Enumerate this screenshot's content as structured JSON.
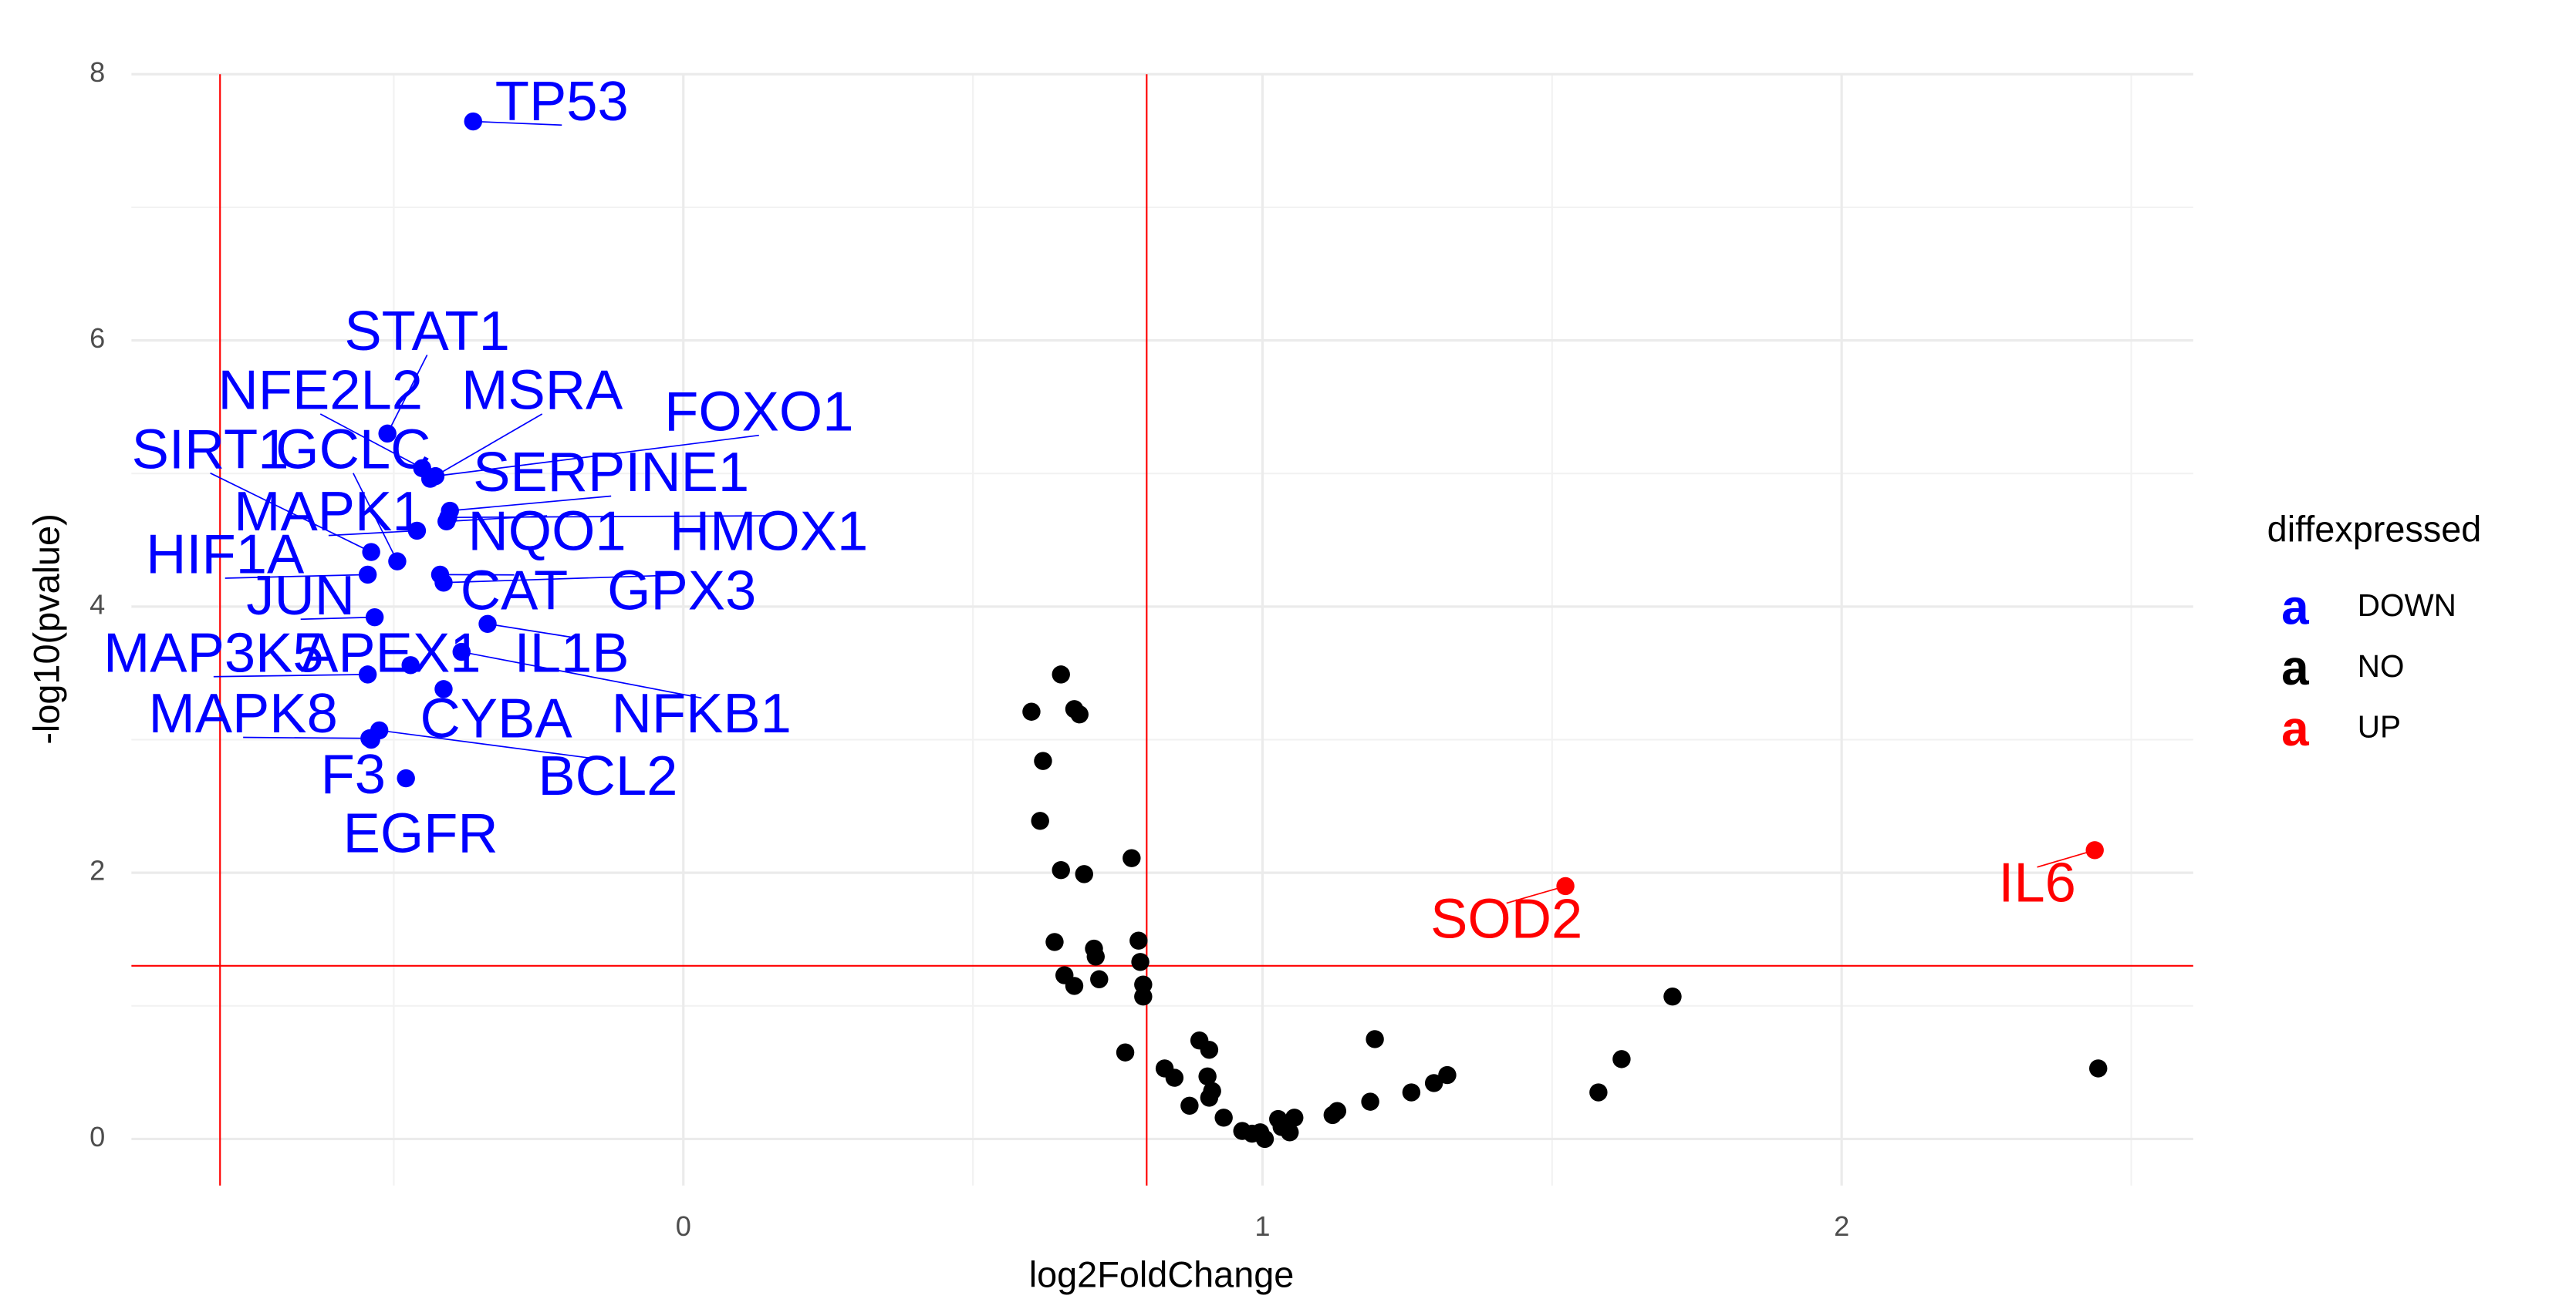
{
  "chart_data": {
    "type": "scatter",
    "x_label": "log2FoldChange",
    "y_label": "-log10(pvalue)",
    "xlim": [
      -0.953,
      2.607
    ],
    "ylim": [
      -0.35,
      8.0
    ],
    "xticks": [
      0,
      1,
      2
    ],
    "yticks": [
      0,
      2,
      4,
      6,
      8
    ],
    "grid": true,
    "vlines": [
      -0.8,
      0.8
    ],
    "hline": 1.301,
    "threshold_color": "#ff0000",
    "legend_title": "diffexpressed",
    "legend_symbol": "a",
    "legend_position": "right",
    "series": [
      {
        "name": "DOWN",
        "color": "#0000ff",
        "labels": [
          "TP53",
          "STAT1",
          "NFE2L2",
          "MSRA",
          "FOXO1",
          "SIRT1",
          "GCLC",
          "SERPINE1",
          "MAPK1",
          "NQO1",
          "HMOX1",
          "HIF1A",
          "JUN",
          "CAT",
          "GPX3",
          "MAP3K5",
          "APEX1",
          "IL1B",
          "NFKB1",
          "MAPK8",
          "CYBA",
          "BCL2",
          "F3",
          "EGFR"
        ],
        "x": [
          -0.363,
          -0.511,
          -0.451,
          -0.437,
          -0.428,
          -0.539,
          -0.494,
          -0.403,
          -0.46,
          -0.409,
          -0.406,
          -0.545,
          -0.533,
          -0.42,
          -0.414,
          -0.545,
          -0.471,
          -0.338,
          -0.383,
          -0.542,
          -0.414,
          -0.525,
          -0.539,
          -0.479
        ],
        "values": [
          7.645,
          5.3,
          5.04,
          4.96,
          4.98,
          4.41,
          4.34,
          4.72,
          4.57,
          4.64,
          4.67,
          4.24,
          3.92,
          4.24,
          4.18,
          3.49,
          3.56,
          3.87,
          3.66,
          3.01,
          3.38,
          3.07,
          3.0,
          2.71
        ]
      },
      {
        "name": "NO",
        "color": "#000000",
        "x": [
          0.652,
          0.601,
          0.675,
          0.684,
          0.621,
          0.616,
          0.652,
          0.692,
          0.774,
          0.641,
          0.709,
          0.712,
          0.786,
          0.658,
          0.675,
          0.718,
          0.789,
          0.794,
          0.794,
          0.763,
          0.831,
          0.848,
          0.891,
          0.908,
          0.874,
          0.905,
          0.913,
          0.908,
          0.933,
          0.965,
          0.982,
          1.004,
          0.996,
          1.027,
          1.038,
          1.055,
          1.047,
          1.033,
          1.121,
          1.129,
          1.186,
          1.194,
          1.257,
          1.296,
          1.319,
          1.58,
          1.62,
          1.708,
          2.443
        ],
        "values": [
          3.49,
          3.21,
          3.23,
          3.19,
          2.84,
          2.39,
          2.02,
          1.99,
          2.11,
          1.48,
          1.43,
          1.37,
          1.49,
          1.23,
          1.15,
          1.2,
          1.33,
          1.16,
          1.07,
          0.65,
          0.53,
          0.46,
          0.74,
          0.67,
          0.25,
          0.47,
          0.36,
          0.31,
          0.16,
          0.06,
          0.04,
          0.0,
          0.05,
          0.15,
          0.1,
          0.16,
          0.05,
          0.09,
          0.18,
          0.21,
          0.28,
          0.75,
          0.35,
          0.42,
          0.48,
          0.35,
          0.6,
          1.07,
          0.53
        ]
      },
      {
        "name": "UP",
        "color": "#ff0000",
        "labels": [
          "SOD2",
          "IL6"
        ],
        "x": [
          1.523,
          2.437
        ],
        "values": [
          1.9,
          2.17
        ]
      }
    ]
  }
}
